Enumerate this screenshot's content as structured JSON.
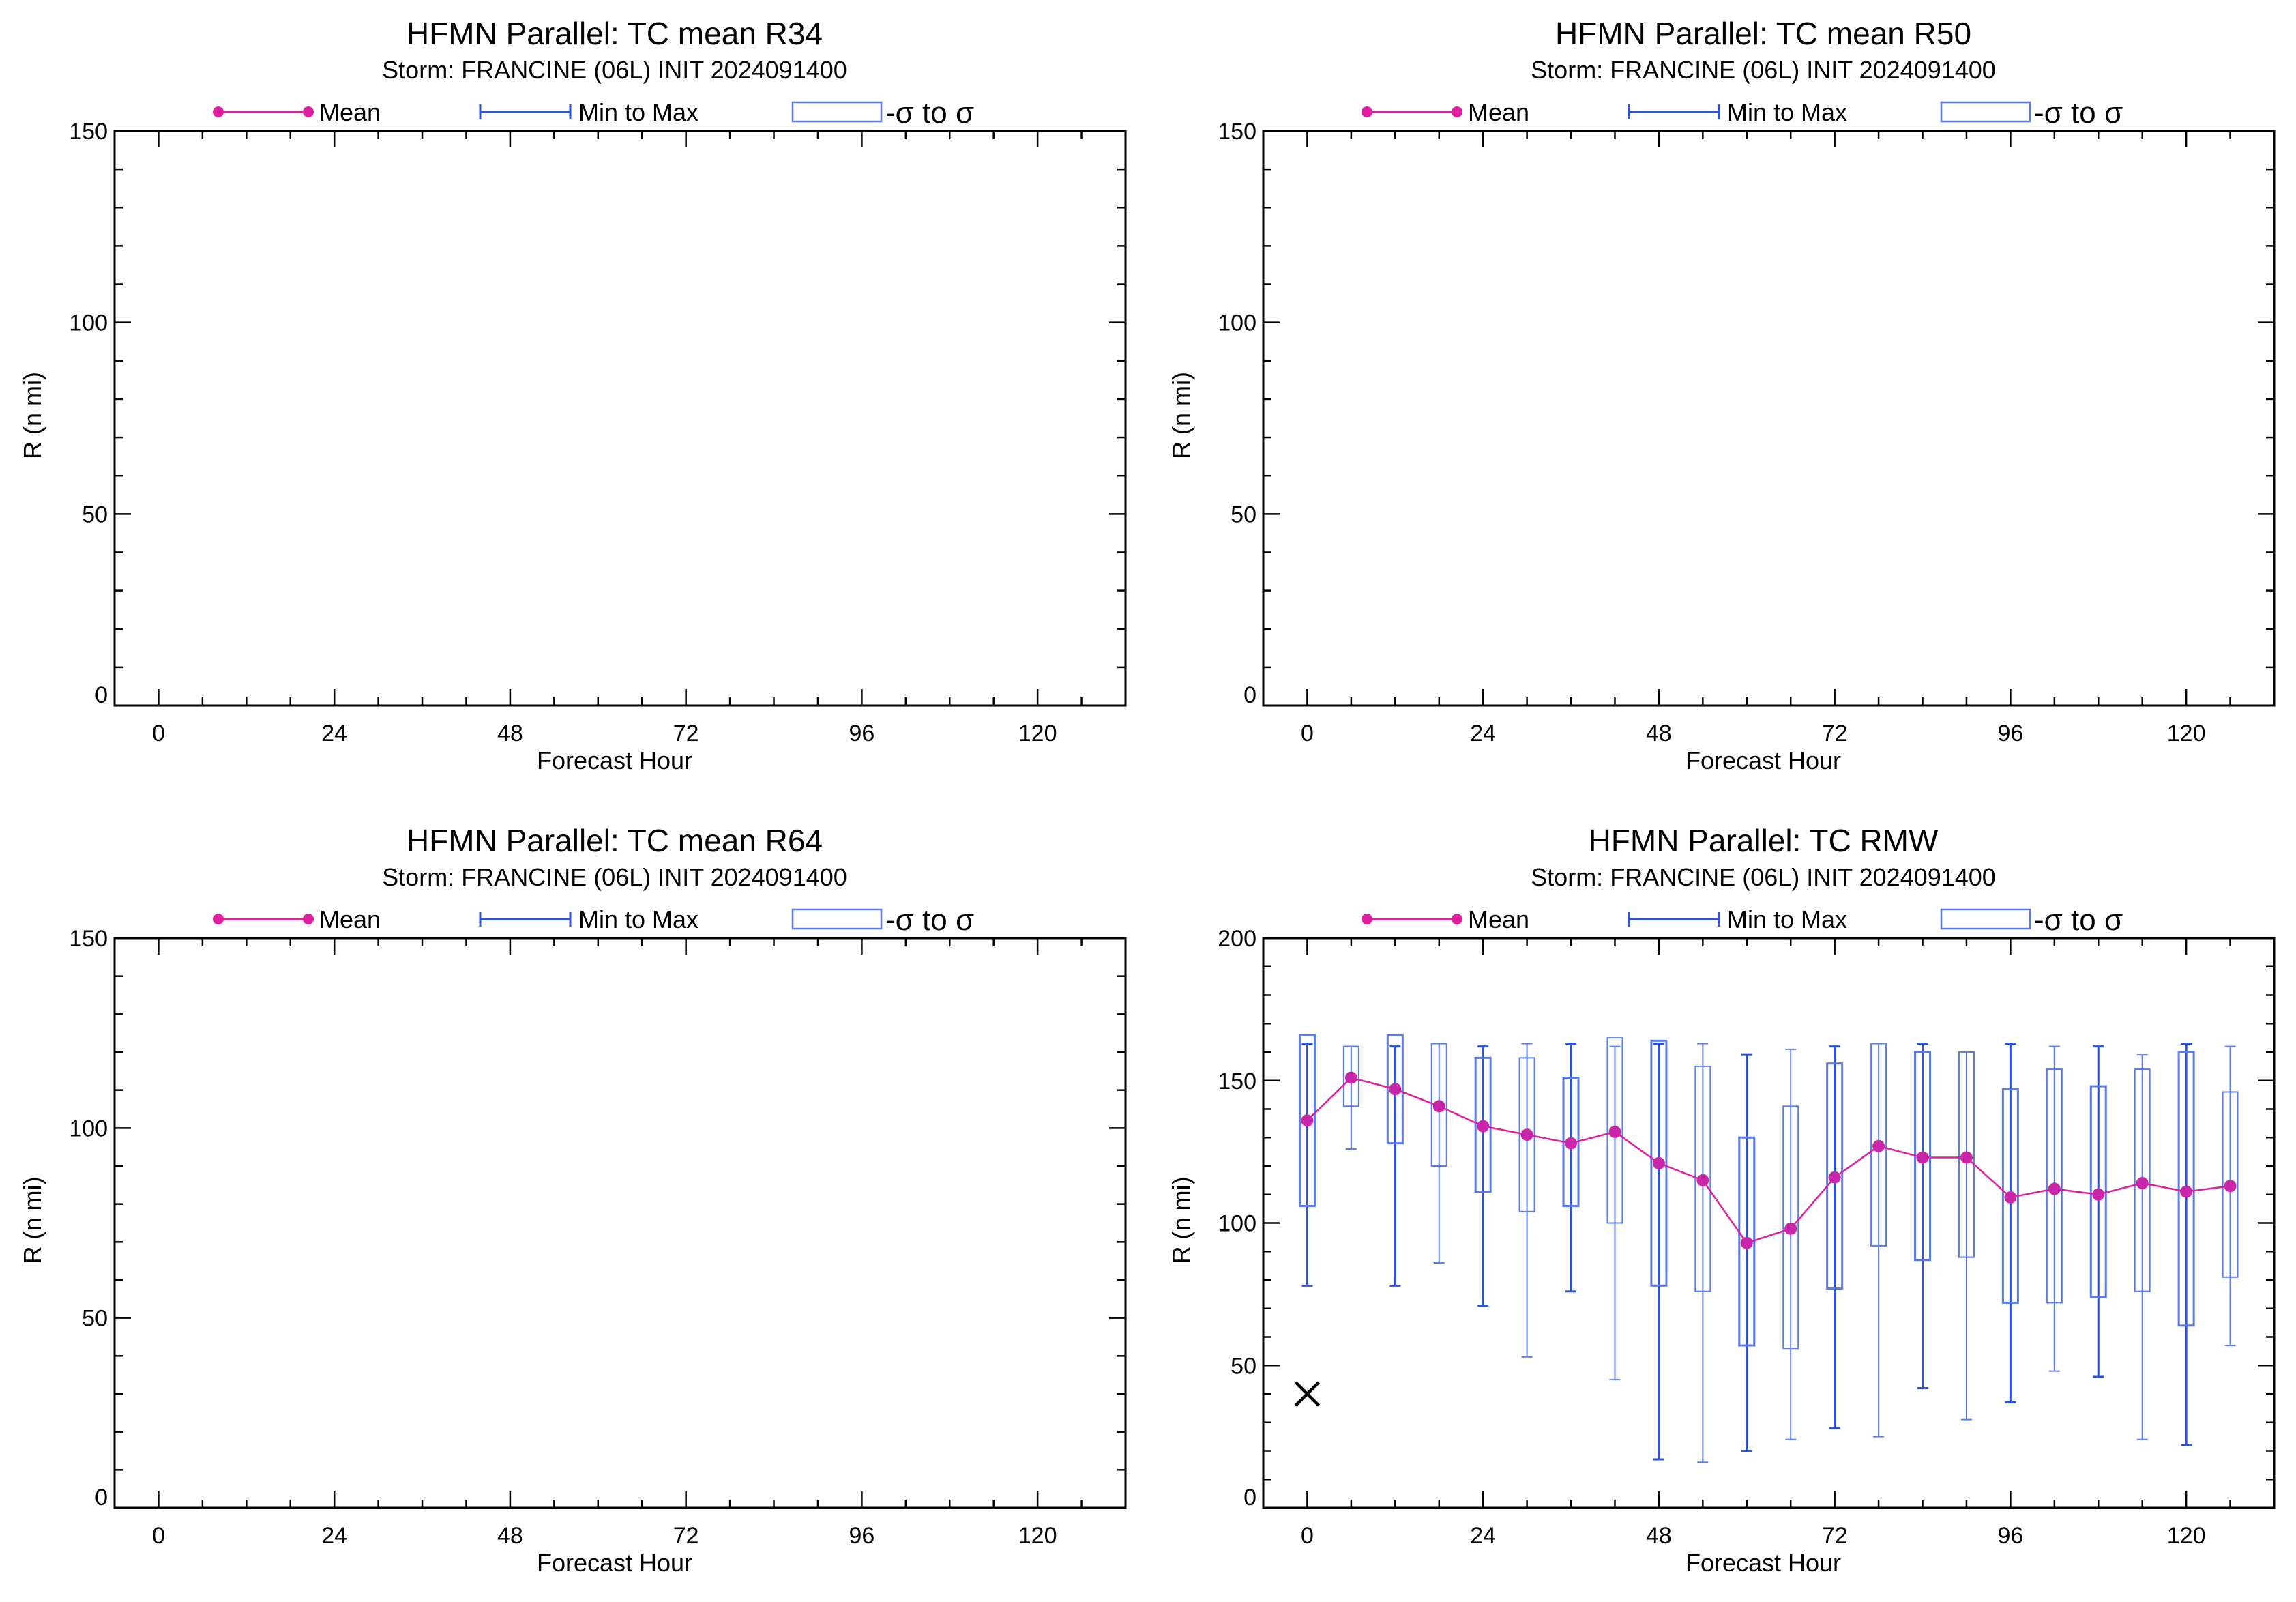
{
  "chart_data": [
    {
      "type": "line",
      "title": "HFMN Parallel: TC mean R34",
      "subtitle": "Storm: FRANCINE (06L) INIT 2024091400",
      "xlabel": "Forecast Hour",
      "ylabel": "R (n mi)",
      "xlim": [
        -6,
        132
      ],
      "ylim": [
        0,
        150
      ],
      "xticks": [
        0,
        24,
        48,
        72,
        96,
        120
      ],
      "yticks": [
        0,
        50,
        100,
        150
      ],
      "legend": [
        "Mean",
        "Min to Max",
        "-σ to σ"
      ],
      "legend_position": "top",
      "series": []
    },
    {
      "type": "line",
      "title": "HFMN Parallel: TC mean R50",
      "subtitle": "Storm: FRANCINE (06L) INIT 2024091400",
      "xlabel": "Forecast Hour",
      "ylabel": "R (n mi)",
      "xlim": [
        -6,
        132
      ],
      "ylim": [
        0,
        150
      ],
      "xticks": [
        0,
        24,
        48,
        72,
        96,
        120
      ],
      "yticks": [
        0,
        50,
        100,
        150
      ],
      "legend": [
        "Mean",
        "Min to Max",
        "-σ to σ"
      ],
      "legend_position": "top",
      "series": []
    },
    {
      "type": "line",
      "title": "HFMN Parallel: TC mean R64",
      "subtitle": "Storm: FRANCINE (06L) INIT 2024091400",
      "xlabel": "Forecast Hour",
      "ylabel": "R (n mi)",
      "xlim": [
        -6,
        132
      ],
      "ylim": [
        0,
        150
      ],
      "xticks": [
        0,
        24,
        48,
        72,
        96,
        120
      ],
      "yticks": [
        0,
        50,
        100,
        150
      ],
      "legend": [
        "Mean",
        "Min to Max",
        "-σ to σ"
      ],
      "legend_position": "top",
      "series": []
    },
    {
      "type": "line",
      "title": "HFMN Parallel: TC RMW",
      "subtitle": "Storm: FRANCINE (06L) INIT 2024091400",
      "xlabel": "Forecast Hour",
      "ylabel": "R (n mi)",
      "xlim": [
        -6,
        132
      ],
      "ylim": [
        0,
        200
      ],
      "xticks": [
        0,
        24,
        48,
        72,
        96,
        120
      ],
      "yticks": [
        0,
        50,
        100,
        150,
        200
      ],
      "legend": [
        "Mean",
        "Min to Max",
        "-σ to σ"
      ],
      "legend_position": "top",
      "x": [
        0,
        6,
        12,
        18,
        24,
        30,
        36,
        42,
        48,
        54,
        60,
        66,
        72,
        78,
        84,
        90,
        96,
        102,
        108,
        114,
        120,
        126
      ],
      "series": [
        {
          "name": "Mean",
          "values": [
            136,
            151,
            147,
            141,
            134,
            131,
            128,
            132,
            121,
            115,
            93,
            98,
            116,
            127,
            123,
            123,
            109,
            112,
            110,
            114,
            111,
            113
          ]
        },
        {
          "name": "Min to Max",
          "min": [
            78,
            126,
            78,
            86,
            71,
            53,
            76,
            45,
            17,
            16,
            20,
            24,
            28,
            25,
            42,
            31,
            37,
            48,
            46,
            24,
            22,
            57
          ],
          "max": [
            163,
            162,
            162,
            163,
            162,
            163,
            163,
            162,
            163,
            163,
            159,
            161,
            162,
            163,
            163,
            160,
            163,
            162,
            162,
            159,
            163,
            162
          ]
        },
        {
          "name": "-σ to σ",
          "low": [
            106,
            141,
            128,
            120,
            111,
            104,
            106,
            100,
            78,
            76,
            57,
            56,
            77,
            92,
            87,
            88,
            72,
            72,
            74,
            76,
            64,
            81
          ],
          "high": [
            166,
            162,
            166,
            163,
            158,
            158,
            151,
            165,
            164,
            155,
            130,
            141,
            156,
            163,
            160,
            160,
            147,
            154,
            148,
            154,
            160,
            146
          ]
        },
        {
          "name": "",
          "marker": "x",
          "x": [
            0
          ],
          "values": [
            40
          ]
        }
      ]
    }
  ],
  "colors": {
    "mean": "#e01ea0",
    "mean_marker": "#c926a9",
    "range": "#2a52de",
    "sigma": "#5a7bef",
    "axis": "#000000"
  }
}
